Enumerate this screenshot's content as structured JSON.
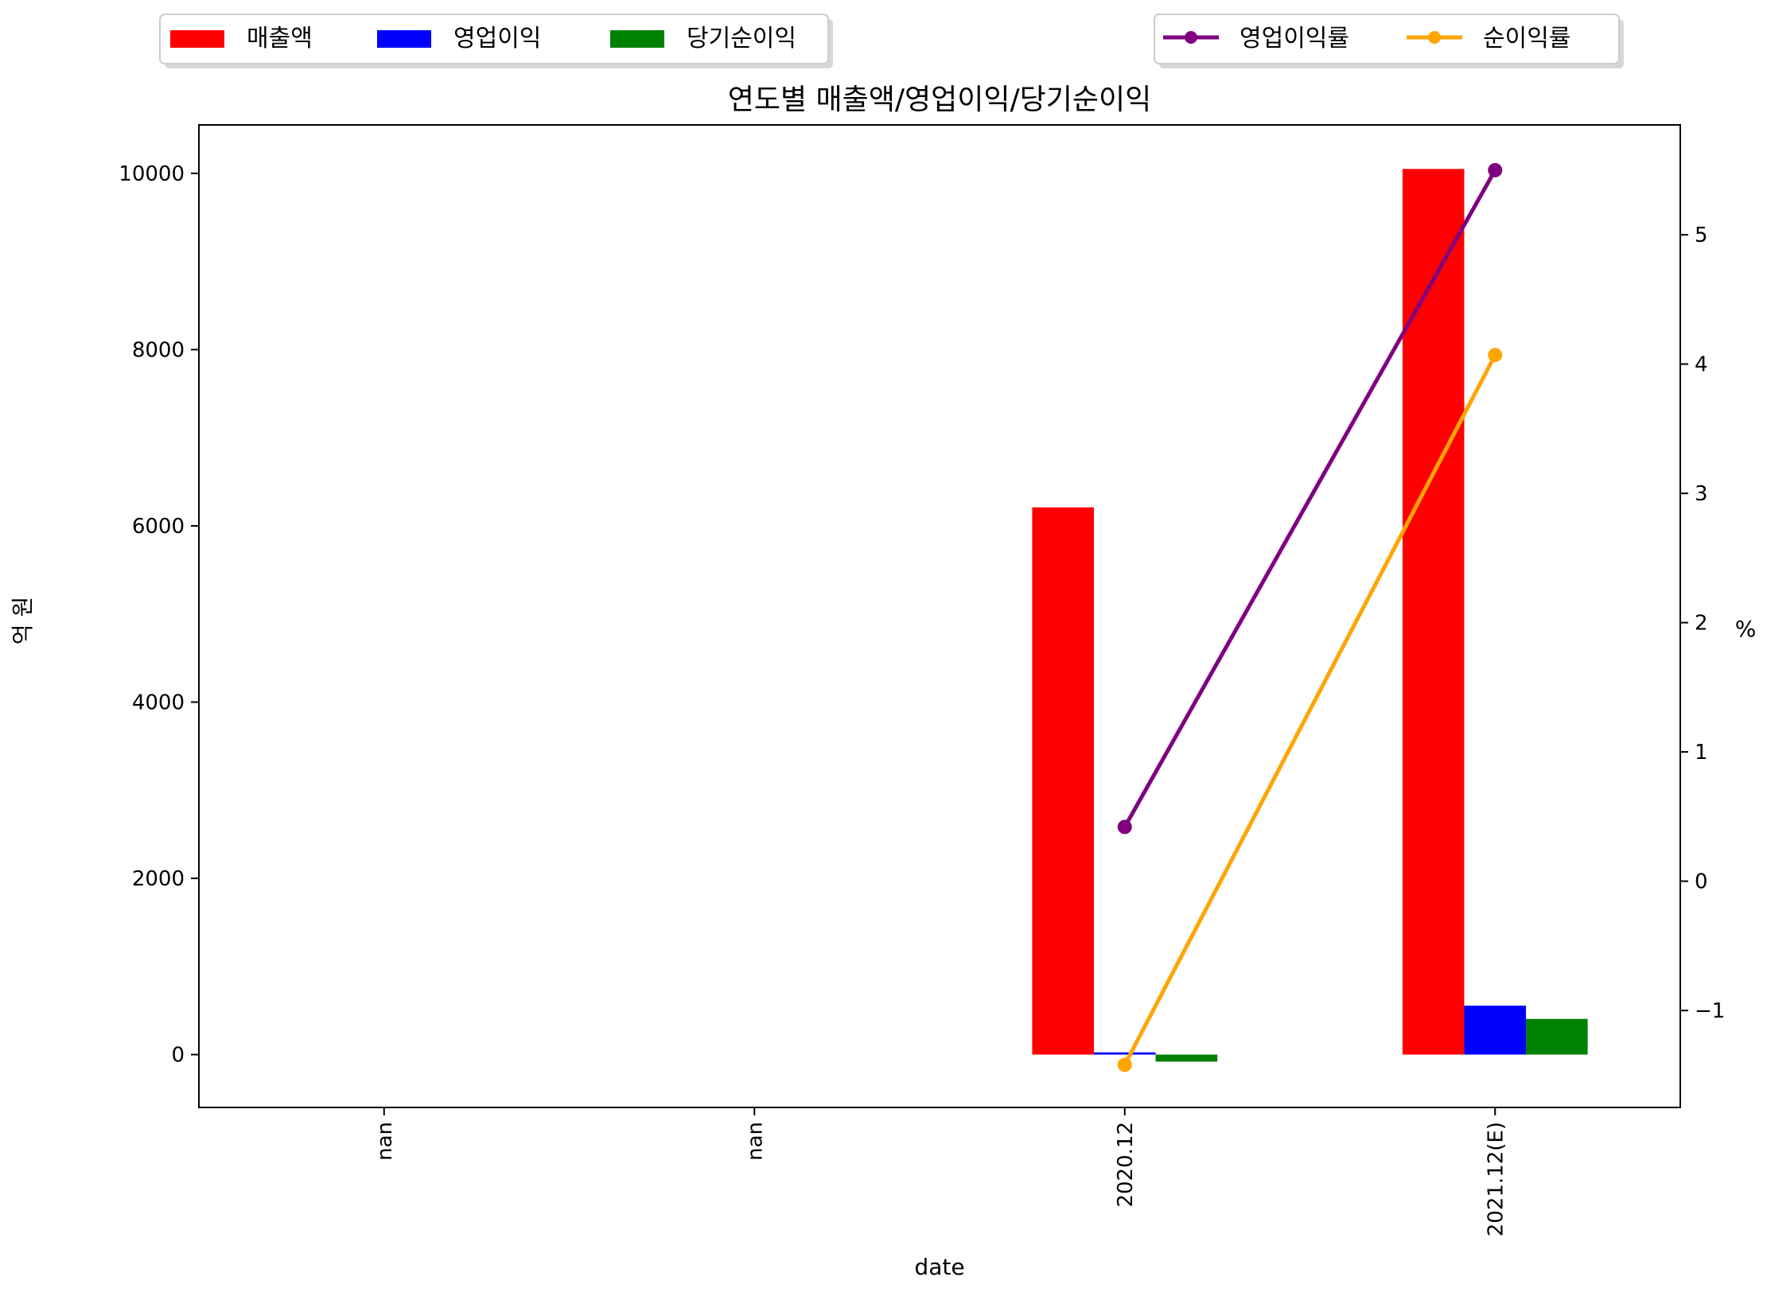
{
  "chart_data": {
    "type": "bar",
    "title": "연도별 매출액/영업이익/당기순이익",
    "xlabel": "date",
    "ylabel": "억 원",
    "y2label": "%",
    "categories": [
      "nan",
      "nan",
      "2020.12",
      "2021.12(E)"
    ],
    "ylim": [
      -600,
      10550
    ],
    "y2lim": [
      -1.75,
      5.85
    ],
    "yticks": [
      0,
      2000,
      4000,
      6000,
      8000,
      10000
    ],
    "y2ticks": [
      -1,
      0,
      1,
      2,
      3,
      4,
      5
    ],
    "grid": false,
    "series": [
      {
        "name": "매출액",
        "color": "#ff0000",
        "values": [
          null,
          null,
          6210,
          10050
        ]
      },
      {
        "name": "영업이익",
        "color": "#0000ff",
        "values": [
          null,
          null,
          25,
          555
        ]
      },
      {
        "name": "당기순이익",
        "color": "#008000",
        "values": [
          null,
          null,
          -80,
          405
        ]
      }
    ],
    "line_series": [
      {
        "name": "영업이익률",
        "color": "#800080",
        "values": [
          null,
          null,
          0.42,
          5.5
        ]
      },
      {
        "name": "순이익률",
        "color": "#ffa500",
        "values": [
          null,
          null,
          -1.42,
          4.07
        ]
      }
    ],
    "legend_left": "top-left",
    "legend_right": "top-right"
  }
}
